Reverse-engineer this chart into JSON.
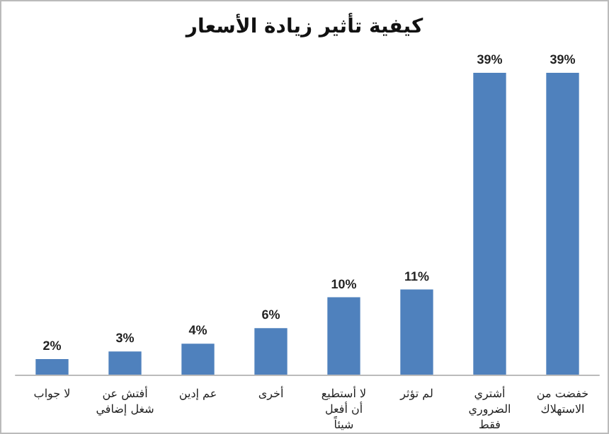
{
  "chart_data": {
    "type": "bar",
    "title": "كيفية تأثير زيادة الأسعار",
    "categories": [
      "لا جواب",
      "أفتش عن شغل إضافي",
      "عم إدين",
      "أخرى",
      "لا أستطيع أن أفعل شيئاً",
      "لم تؤثر",
      "أشتري الضروري فقط",
      "خفضت من الاستهلاك"
    ],
    "values": [
      2,
      3,
      4,
      6,
      10,
      11,
      39,
      39
    ],
    "value_labels": [
      "2%",
      "3%",
      "4%",
      "6%",
      "10%",
      "11%",
      "39%",
      "39%"
    ],
    "color": "#4f81bd",
    "grid": false
  }
}
